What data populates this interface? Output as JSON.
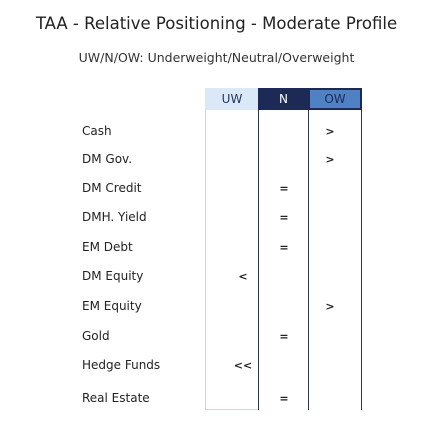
{
  "header": {
    "title": "TAA - Relative Positioning - Moderate Profile",
    "subtitle": "UW/N/OW: Underweight/Neutral/Overweight"
  },
  "table": {
    "columns": [
      "UW",
      "N",
      "OW"
    ],
    "rows": [
      [
        "Cash",
        ">"
      ],
      [
        "DM Gov.",
        ">"
      ],
      [
        "DM Credit",
        "="
      ],
      [
        "DMH. Yield",
        "="
      ],
      [
        "EM Debt",
        "="
      ],
      [
        "DM Equity",
        "<"
      ],
      [
        "EM Equity",
        ">"
      ],
      [
        "Gold",
        "="
      ],
      [
        "Hedge Funds",
        "<<"
      ],
      [
        "Real Estate",
        "="
      ]
    ]
  }
}
